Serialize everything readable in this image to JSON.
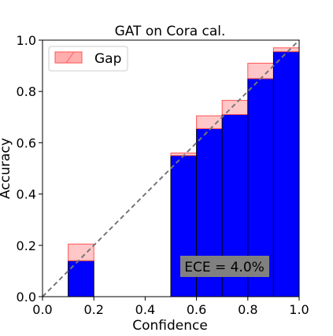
{
  "chart_data": {
    "type": "bar",
    "title": "GAT on Cora cal.",
    "xlabel": "Confidence",
    "ylabel": "Accuracy",
    "xlim": [
      0.0,
      1.0
    ],
    "ylim": [
      0.0,
      1.0
    ],
    "xticks": [
      "0.0",
      "0.2",
      "0.4",
      "0.6",
      "0.8",
      "1.0"
    ],
    "yticks": [
      "0.0",
      "0.2",
      "0.4",
      "0.6",
      "0.8",
      "1.0"
    ],
    "grid": false,
    "legend_position": "top-left",
    "legend_label": "Gap",
    "annotation": "ECE = 4.0%",
    "bins": [
      {
        "left": 0.1,
        "right": 0.2,
        "accuracy": 0.14,
        "confidence": 0.205
      },
      {
        "left": 0.5,
        "right": 0.6,
        "accuracy": 0.55,
        "confidence": 0.56
      },
      {
        "left": 0.6,
        "right": 0.7,
        "accuracy": 0.655,
        "confidence": 0.705
      },
      {
        "left": 0.7,
        "right": 0.8,
        "accuracy": 0.71,
        "confidence": 0.765
      },
      {
        "left": 0.8,
        "right": 0.9,
        "accuracy": 0.85,
        "confidence": 0.91
      },
      {
        "left": 0.9,
        "right": 1.0,
        "accuracy": 0.955,
        "confidence": 0.97
      }
    ],
    "colors": {
      "accuracy_bar": "#0000ff",
      "gap_fill": "#ff9999",
      "gap_edge": "#ff5555",
      "diagonal": "#777777",
      "annotation_box": "#808080"
    }
  }
}
